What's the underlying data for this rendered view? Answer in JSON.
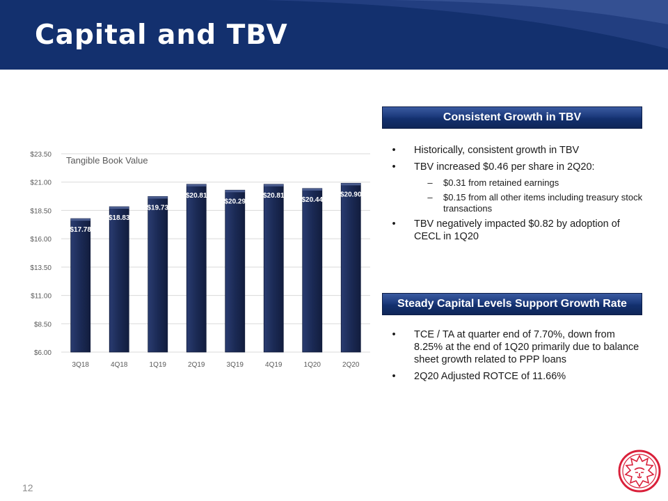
{
  "page": {
    "title": "Capital and TBV",
    "page_number": "12"
  },
  "colors": {
    "header_navy": "#13306e",
    "bar_fill": "#1b2a55",
    "panel_bar": "#1c3a7c",
    "logo_red": "#d9203a"
  },
  "panels": {
    "tbv": {
      "header": "Consistent Growth in TBV",
      "bullets": [
        {
          "level": 1,
          "text": "Historically, consistent growth in TBV"
        },
        {
          "level": 1,
          "text": "TBV increased $0.46 per share in 2Q20:"
        },
        {
          "level": 2,
          "text": "$0.31 from retained earnings"
        },
        {
          "level": 2,
          "text": "$0.15 from all other items including treasury stock transactions"
        },
        {
          "level": 1,
          "text": "TBV negatively impacted $0.82 by adoption of CECL in 1Q20"
        }
      ]
    },
    "capital": {
      "header": "Steady Capital Levels Support Growth Rate",
      "bullets": [
        {
          "level": 1,
          "text": "TCE / TA at quarter end of 7.70%, down from 8.25% at the end of 1Q20 primarily due to balance sheet growth related to PPP loans"
        },
        {
          "level": 1,
          "text": "2Q20 Adjusted ROTCE of 11.66%"
        }
      ]
    }
  },
  "chart_data": {
    "type": "bar",
    "title": "Tangible Book Value",
    "categories": [
      "3Q18",
      "4Q18",
      "1Q19",
      "2Q19",
      "3Q19",
      "4Q19",
      "1Q20",
      "2Q20"
    ],
    "values": [
      17.78,
      18.83,
      19.73,
      20.81,
      20.29,
      20.81,
      20.44,
      20.9
    ],
    "data_labels": [
      "$17.78",
      "$18.83",
      "$19.73",
      "$20.81",
      "$20.29",
      "$20.81",
      "$20.44",
      "$20.90"
    ],
    "ylim": [
      6.0,
      23.5
    ],
    "yticks": [
      6.0,
      8.5,
      11.0,
      13.5,
      16.0,
      18.5,
      21.0,
      23.5
    ],
    "ytick_labels": [
      "$6.00",
      "$8.50",
      "$11.00",
      "$13.50",
      "$16.00",
      "$18.50",
      "$21.00",
      "$23.50"
    ],
    "xlabel": "",
    "ylabel": "",
    "grid": true,
    "legend": false
  }
}
